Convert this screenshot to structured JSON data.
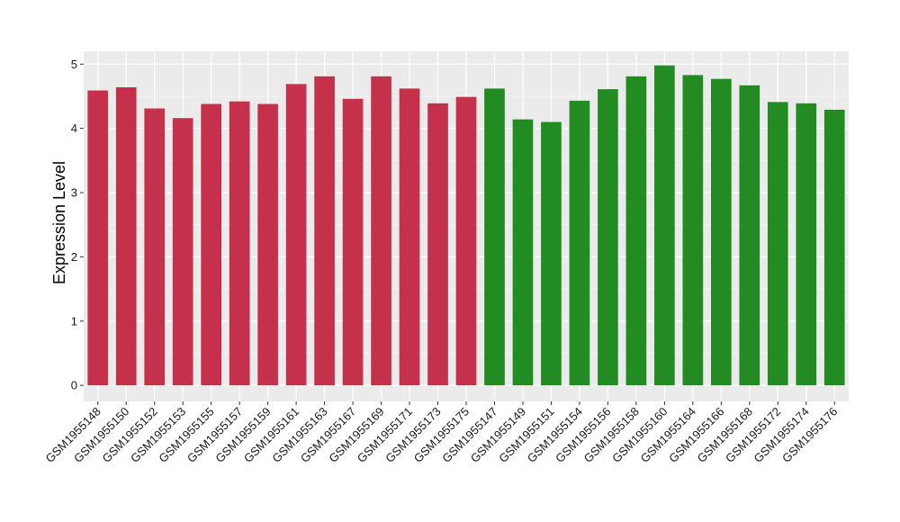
{
  "chart_data": {
    "type": "bar",
    "title": "",
    "xlabel": "",
    "ylabel": "Expression Level",
    "ylim": [
      0,
      5
    ],
    "yticks": [
      "0",
      "1",
      "2",
      "3",
      "4",
      "5"
    ],
    "grid": true,
    "panel_background": "#ebebeb",
    "categories": [
      "GSM1955148",
      "GSM1955150",
      "GSM1955152",
      "GSM1955153",
      "GSM1955155",
      "GSM1955157",
      "GSM1955159",
      "GSM1955161",
      "GSM1955163",
      "GSM1955167",
      "GSM1955169",
      "GSM1955171",
      "GSM1955173",
      "GSM1955175",
      "GSM1955147",
      "GSM1955149",
      "GSM1955151",
      "GSM1955154",
      "GSM1955156",
      "GSM1955158",
      "GSM1955160",
      "GSM1955164",
      "GSM1955166",
      "GSM1955168",
      "GSM1955172",
      "GSM1955174",
      "GSM1955176"
    ],
    "values": [
      4.59,
      4.64,
      4.31,
      4.16,
      4.38,
      4.42,
      4.38,
      4.69,
      4.81,
      4.46,
      4.81,
      4.62,
      4.39,
      4.49,
      4.62,
      4.14,
      4.1,
      4.43,
      4.61,
      4.81,
      4.98,
      4.83,
      4.77,
      4.67,
      4.41,
      4.39,
      4.29
    ],
    "bar_colors": [
      "#c5304a",
      "#c5304a",
      "#c5304a",
      "#c5304a",
      "#c5304a",
      "#c5304a",
      "#c5304a",
      "#c5304a",
      "#c5304a",
      "#c5304a",
      "#c5304a",
      "#c5304a",
      "#c5304a",
      "#c5304a",
      "#228b22",
      "#228b22",
      "#228b22",
      "#228b22",
      "#228b22",
      "#228b22",
      "#228b22",
      "#228b22",
      "#228b22",
      "#228b22",
      "#228b22",
      "#228b22",
      "#228b22"
    ]
  }
}
